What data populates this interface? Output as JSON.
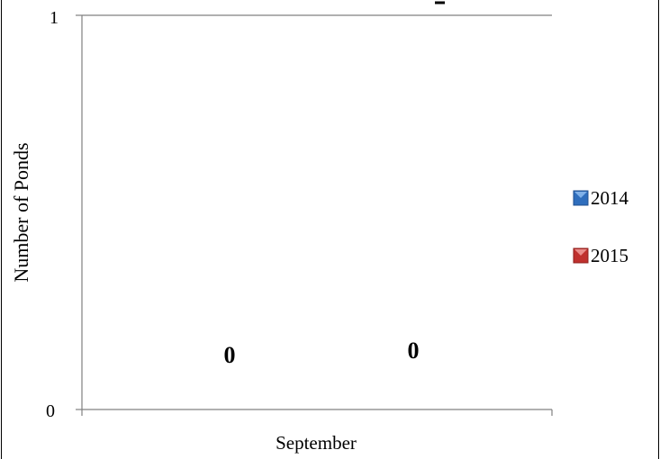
{
  "chart_data": {
    "type": "bar",
    "title": "",
    "xlabel": "September",
    "ylabel": "Number of Ponds",
    "ylim": [
      0,
      1
    ],
    "yticks": [
      "0",
      "1"
    ],
    "categories": [
      "September"
    ],
    "series": [
      {
        "name": "2014",
        "values": [
          0
        ],
        "color": "#2f6ebd",
        "data_label": "0"
      },
      {
        "name": "2015",
        "values": [
          0
        ],
        "color": "#c0312e",
        "data_label": "0"
      }
    ],
    "legend_position": "right",
    "grid": false
  }
}
